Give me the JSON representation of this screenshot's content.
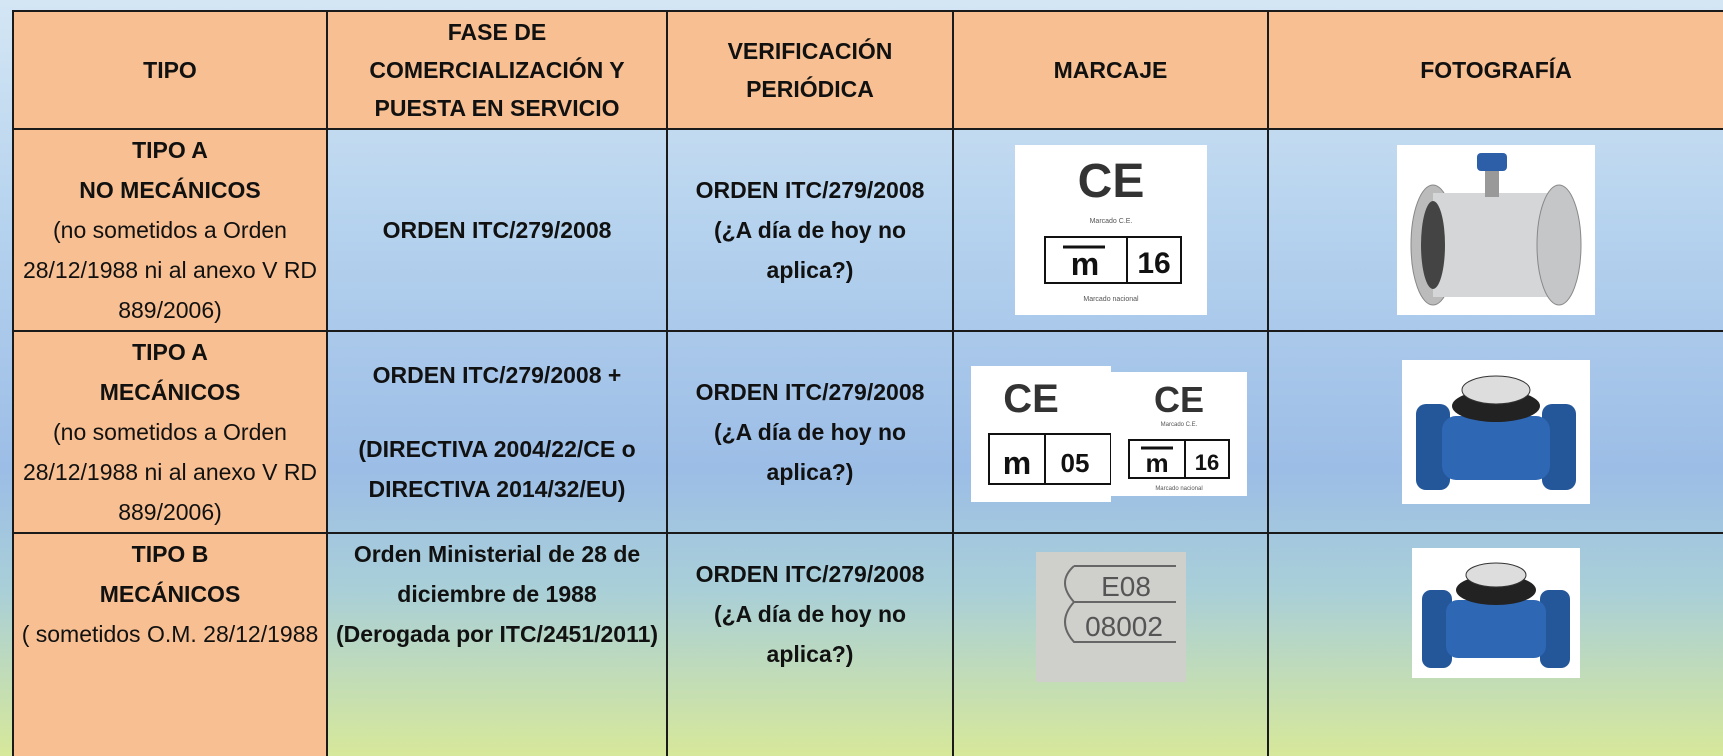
{
  "table": {
    "headers": [
      "TIPO",
      "FASE DE COMERCIALIZACIÓN Y PUESTA EN SERVICIO",
      "VERIFICACIÓN PERIÓDICA",
      "MARCAJE",
      "FOTOGRAFÍA"
    ],
    "rows": [
      {
        "tipo": [
          "TIPO A",
          "NO MECÁNICOS"
        ],
        "tipo_note": "(no sometidos a Orden 28/12/1988 ni al anexo V RD 889/2006)",
        "fase": [
          "ORDEN ITC/279/2008"
        ],
        "verificacion": "ORDEN ITC/279/2008 (¿A día de hoy no aplica?)",
        "marcaje": [
          {
            "ce": "CE",
            "caption": "Marcado C.E.",
            "m": "m",
            "number": "16",
            "caption2": "Marcado nacional"
          }
        ]
      },
      {
        "tipo": [
          "TIPO A",
          "MECÁNICOS"
        ],
        "tipo_note": "(no sometidos a Orden 28/12/1988 ni al anexo V RD 889/2006)",
        "fase": [
          "ORDEN ITC/279/2008 +",
          "(DIRECTIVA 2004/22/CE o DIRECTIVA  2014/32/EU)"
        ],
        "verificacion": "ORDEN ITC/279/2008 (¿A día de hoy no aplica?)",
        "marcaje": [
          {
            "ce": "CE",
            "m": "m",
            "number": "05"
          },
          {
            "ce": "CE",
            "caption": "Marcado C.E.",
            "m": "m",
            "number": "16",
            "caption2": "Marcado nacional"
          }
        ]
      },
      {
        "tipo": [
          "TIPO B",
          "MECÁNICOS"
        ],
        "tipo_note": "( sometidos O.M. 28/12/1988",
        "fase": [
          "Orden Ministerial de 28 de diciembre de 1988",
          "(Derogada por ITC/2451/2011)"
        ],
        "verificacion": "ORDEN ITC/279/2008 (¿A día de hoy no aplica?)",
        "marcaje": [
          {
            "line1": "E08",
            "line2": "08002"
          }
        ]
      }
    ]
  }
}
